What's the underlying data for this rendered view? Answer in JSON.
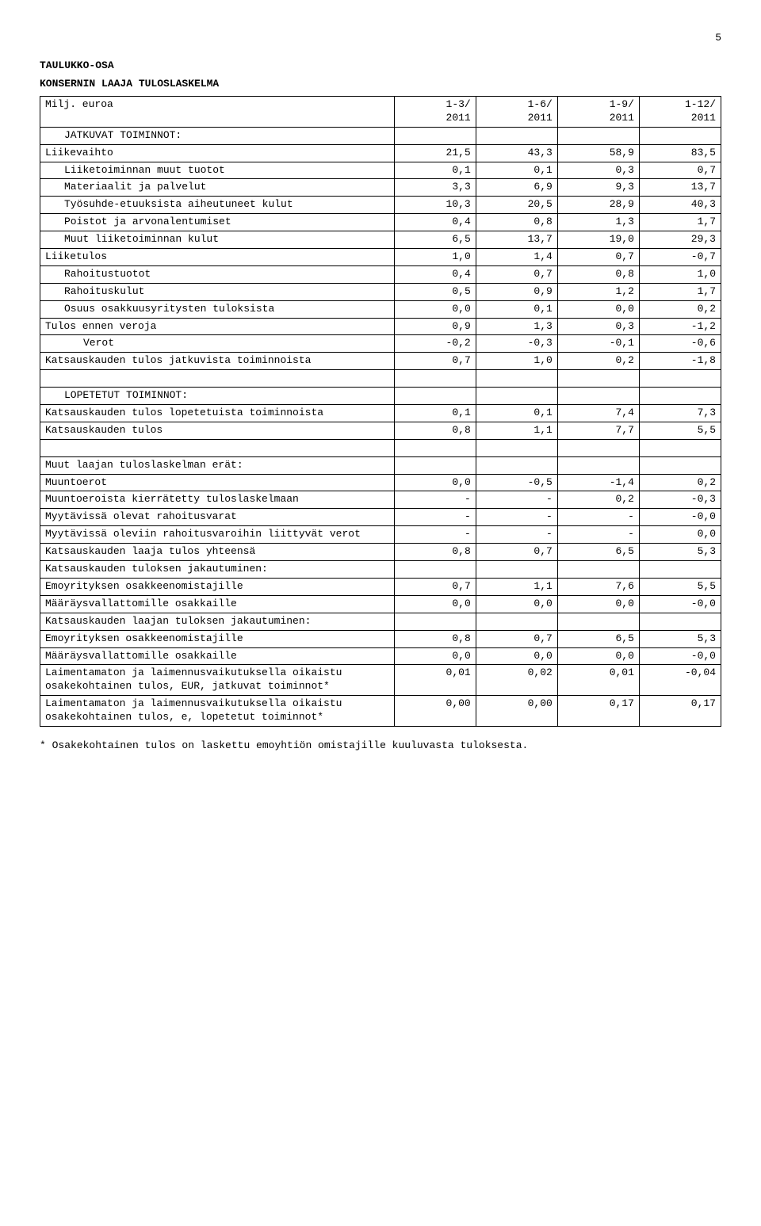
{
  "page_number": "5",
  "title1": "TAULUKKO-OSA",
  "title2": "KONSERNIN LAAJA TULOSLASKELMA",
  "footnote": "* Osakekohtainen tulos on laskettu emoyhtiön omistajille kuuluvasta tuloksesta.",
  "header": {
    "label": "Milj. euroa",
    "c1a": "1-3/",
    "c1b": "2011",
    "c2a": "1-6/",
    "c2b": "2011",
    "c3a": "1-9/",
    "c3b": "2011",
    "c4a": "1-12/",
    "c4b": "2011"
  },
  "rows": [
    {
      "label": "JATKUVAT TOIMINNOT:",
      "indent": 1,
      "v": [
        "",
        "",
        "",
        ""
      ]
    },
    {
      "label": "Liikevaihto",
      "indent": 0,
      "v": [
        "21,5",
        "43,3",
        "58,9",
        "83,5"
      ]
    },
    {
      "label": "Liiketoiminnan muut tuotot",
      "indent": 1,
      "v": [
        "0,1",
        "0,1",
        "0,3",
        "0,7"
      ]
    },
    {
      "label": "Materiaalit ja palvelut",
      "indent": 1,
      "v": [
        "3,3",
        "6,9",
        "9,3",
        "13,7"
      ]
    },
    {
      "label": "Työsuhde-etuuksista aiheutuneet kulut",
      "indent": 1,
      "v": [
        "10,3",
        "20,5",
        "28,9",
        "40,3"
      ]
    },
    {
      "label": "Poistot ja arvonalentumiset",
      "indent": 1,
      "v": [
        "0,4",
        "0,8",
        "1,3",
        "1,7"
      ]
    },
    {
      "label": "Muut liiketoiminnan kulut",
      "indent": 1,
      "v": [
        "6,5",
        "13,7",
        "19,0",
        "29,3"
      ]
    },
    {
      "label": "Liiketulos",
      "indent": 0,
      "v": [
        "1,0",
        "1,4",
        "0,7",
        "-0,7"
      ]
    },
    {
      "label": "Rahoitustuotot",
      "indent": 1,
      "v": [
        "0,4",
        "0,7",
        "0,8",
        "1,0"
      ]
    },
    {
      "label": "Rahoituskulut",
      "indent": 1,
      "v": [
        "0,5",
        "0,9",
        "1,2",
        "1,7"
      ]
    },
    {
      "label": "Osuus osakkuusyritysten tuloksista",
      "indent": 1,
      "v": [
        "0,0",
        "0,1",
        "0,0",
        "0,2"
      ]
    },
    {
      "label": "Tulos ennen veroja",
      "indent": 0,
      "v": [
        "0,9",
        "1,3",
        "0,3",
        "-1,2"
      ]
    },
    {
      "label": "Verot",
      "indent": 2,
      "v": [
        "-0,2",
        "-0,3",
        "-0,1",
        "-0,6"
      ]
    },
    {
      "label": "Katsauskauden tulos jatkuvista toiminnoista",
      "indent": 0,
      "v": [
        "0,7",
        "1,0",
        "0,2",
        "-1,8"
      ]
    },
    {
      "label": "",
      "indent": 0,
      "v": [
        "",
        "",
        "",
        ""
      ]
    },
    {
      "label": "LOPETETUT TOIMINNOT:",
      "indent": 1,
      "v": [
        "",
        "",
        "",
        ""
      ]
    },
    {
      "label": "Katsauskauden tulos lopetetuista toiminnoista",
      "indent": 0,
      "v": [
        "0,1",
        "0,1",
        "7,4",
        "7,3"
      ]
    },
    {
      "label": "Katsauskauden tulos",
      "indent": 0,
      "v": [
        "0,8",
        "1,1",
        "7,7",
        "5,5"
      ]
    },
    {
      "label": "",
      "indent": 0,
      "v": [
        "",
        "",
        "",
        ""
      ]
    },
    {
      "label": "Muut laajan tuloslaskelman erät:",
      "indent": 0,
      "v": [
        "",
        "",
        "",
        ""
      ]
    },
    {
      "label": "Muuntoerot",
      "indent": 0,
      "v": [
        "0,0",
        "-0,5",
        "-1,4",
        "0,2"
      ]
    },
    {
      "label": "Muuntoeroista kierrätetty tuloslaskelmaan",
      "indent": 0,
      "v": [
        "-",
        "-",
        "0,2",
        "-0,3"
      ]
    },
    {
      "label": "Myytävissä olevat rahoitusvarat",
      "indent": 0,
      "v": [
        "-",
        "-",
        "-",
        "-0,0"
      ]
    },
    {
      "label": "Myytävissä oleviin rahoitusvaroihin liittyvät verot",
      "indent": 0,
      "v": [
        "-",
        "-",
        "-",
        "0,0"
      ]
    },
    {
      "label": "Katsauskauden laaja tulos yhteensä",
      "indent": 0,
      "v": [
        "0,8",
        "0,7",
        "6,5",
        "5,3"
      ]
    },
    {
      "label": "Katsauskauden tuloksen jakautuminen:",
      "indent": 0,
      "v": [
        "",
        "",
        "",
        ""
      ]
    },
    {
      "label": "Emoyrityksen osakkeenomistajille",
      "indent": 0,
      "v": [
        "0,7",
        "1,1",
        "7,6",
        "5,5"
      ]
    },
    {
      "label": "Määräysvallattomille osakkaille",
      "indent": 0,
      "v": [
        "0,0",
        "0,0",
        "0,0",
        "-0,0"
      ]
    },
    {
      "label": "Katsauskauden laajan tuloksen jakautuminen:",
      "indent": 0,
      "v": [
        "",
        "",
        "",
        ""
      ]
    },
    {
      "label": "Emoyrityksen osakkeenomistajille",
      "indent": 0,
      "v": [
        "0,8",
        "0,7",
        "6,5",
        "5,3"
      ]
    },
    {
      "label": "Määräysvallattomille osakkaille",
      "indent": 0,
      "v": [
        "0,0",
        "0,0",
        "0,0",
        "-0,0"
      ]
    },
    {
      "label": "Laimentamaton ja laimennusvaikutuksella oikaistu osakekohtainen tulos, EUR, jatkuvat toiminnot*",
      "indent": 0,
      "v": [
        "0,01",
        "0,02",
        "0,01",
        "-0,04"
      ]
    },
    {
      "label": "Laimentamaton ja laimennusvaikutuksella oikaistu osakekohtainen tulos, e, lopetetut toiminnot*",
      "indent": 0,
      "v": [
        "0,00",
        "0,00",
        "0,17",
        "0,17"
      ]
    }
  ]
}
